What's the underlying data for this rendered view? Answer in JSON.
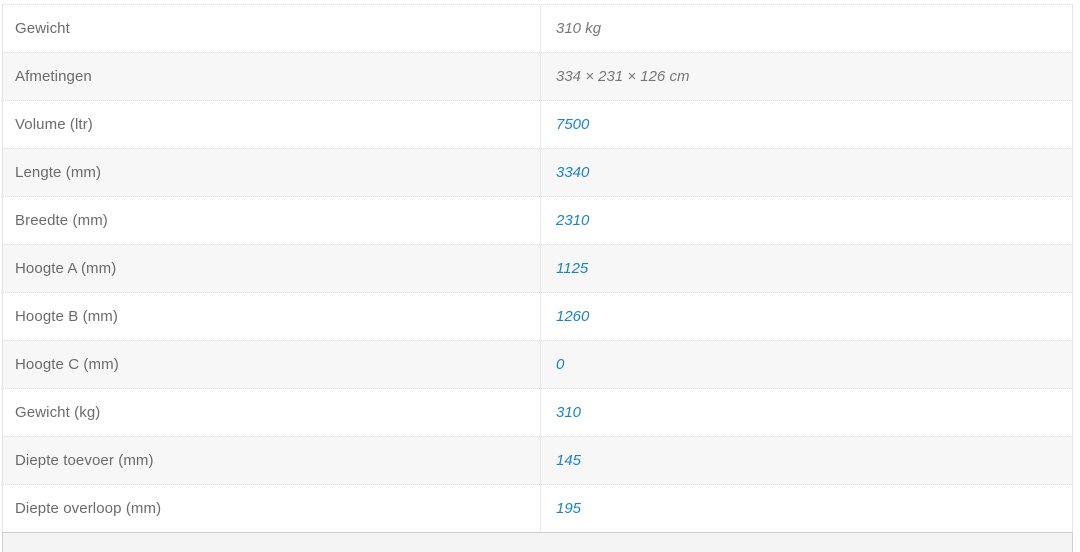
{
  "spec_table": {
    "rows": [
      {
        "label": "Gewicht",
        "value": "310 kg",
        "value_style": "plain"
      },
      {
        "label": "Afmetingen",
        "value": "334 × 231 × 126 cm",
        "value_style": "plain"
      },
      {
        "label": "Volume (ltr)",
        "value": "7500",
        "value_style": "link"
      },
      {
        "label": "Lengte (mm)",
        "value": "3340",
        "value_style": "link"
      },
      {
        "label": "Breedte (mm)",
        "value": "2310",
        "value_style": "link"
      },
      {
        "label": "Hoogte A (mm)",
        "value": "1125",
        "value_style": "link"
      },
      {
        "label": "Hoogte B (mm)",
        "value": "1260",
        "value_style": "link"
      },
      {
        "label": "Hoogte C (mm)",
        "value": "0",
        "value_style": "link"
      },
      {
        "label": "Gewicht (kg)",
        "value": "310",
        "value_style": "link"
      },
      {
        "label": "Diepte toevoer (mm)",
        "value": "145",
        "value_style": "link"
      },
      {
        "label": "Diepte overloop (mm)",
        "value": "195",
        "value_style": "link"
      }
    ]
  },
  "colors": {
    "link_blue": "#1b83c9",
    "label_gray": "#6b6b6b",
    "value_gray": "#787878",
    "row_alt_bg": "#f7f7f7",
    "row_bg": "#ffffff",
    "separator_dotted": "#dddddd",
    "outer_border": "#e4e4e4",
    "column_divider": "#e8e8e8",
    "next_section_bg": "#f4f4f4",
    "next_section_border": "#cfcfcf"
  }
}
